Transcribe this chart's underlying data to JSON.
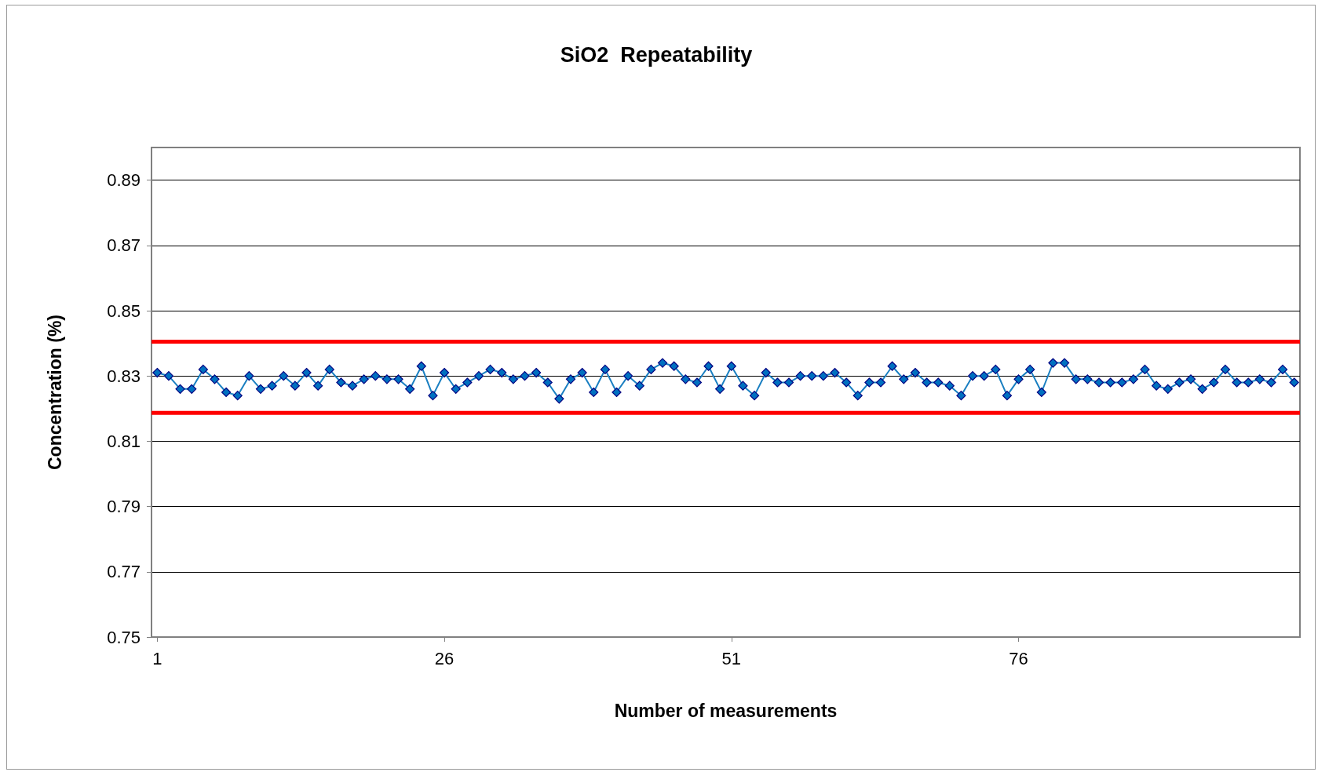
{
  "chart_data": {
    "type": "line",
    "title": "SiO2  Repeatability",
    "xlabel": "Number of measurements",
    "ylabel": "Concentration (%)",
    "x": [
      1,
      2,
      3,
      4,
      5,
      6,
      7,
      8,
      9,
      10,
      11,
      12,
      13,
      14,
      15,
      16,
      17,
      18,
      19,
      20,
      21,
      22,
      23,
      24,
      25,
      26,
      27,
      28,
      29,
      30,
      31,
      32,
      33,
      34,
      35,
      36,
      37,
      38,
      39,
      40,
      41,
      42,
      43,
      44,
      45,
      46,
      47,
      48,
      49,
      50,
      51,
      52,
      53,
      54,
      55,
      56,
      57,
      58,
      59,
      60,
      61,
      62,
      63,
      64,
      65,
      66,
      67,
      68,
      69,
      70,
      71,
      72,
      73,
      74,
      75,
      76,
      77,
      78,
      79,
      80,
      81,
      82,
      83,
      84,
      85,
      86,
      87,
      88,
      89,
      90,
      91,
      92,
      93,
      94,
      95,
      96,
      97,
      98,
      99,
      100
    ],
    "series": [
      {
        "color": "#0070c0",
        "values": [
          0.831,
          0.83,
          0.826,
          0.826,
          0.832,
          0.829,
          0.825,
          0.824,
          0.83,
          0.826,
          0.827,
          0.83,
          0.827,
          0.831,
          0.827,
          0.832,
          0.828,
          0.827,
          0.829,
          0.83,
          0.829,
          0.829,
          0.826,
          0.833,
          0.824,
          0.831,
          0.826,
          0.828,
          0.83,
          0.832,
          0.831,
          0.829,
          0.83,
          0.831,
          0.828,
          0.823,
          0.829,
          0.831,
          0.825,
          0.832,
          0.825,
          0.83,
          0.827,
          0.832,
          0.834,
          0.833,
          0.829,
          0.828,
          0.833,
          0.826,
          0.833,
          0.827,
          0.824,
          0.831,
          0.828,
          0.828,
          0.83,
          0.83,
          0.83,
          0.831,
          0.828,
          0.824,
          0.828,
          0.828,
          0.833,
          0.829,
          0.831,
          0.828,
          0.828,
          0.827,
          0.824,
          0.83,
          0.83,
          0.832,
          0.824,
          0.829,
          0.832,
          0.825,
          0.834,
          0.834,
          0.829,
          0.829,
          0.828,
          0.828,
          0.828,
          0.829,
          0.832,
          0.827,
          0.826,
          0.828,
          0.829,
          0.826,
          0.828,
          0.832,
          0.828,
          0.828,
          0.829,
          0.828,
          0.832,
          0.828
        ]
      }
    ],
    "xlim": [
      0.5,
      100.5
    ],
    "xticks": [
      1,
      26,
      51,
      76
    ],
    "ylim": [
      0.75,
      0.9
    ],
    "yticks": [
      0.75,
      0.77,
      0.79,
      0.81,
      0.83,
      0.85,
      0.87,
      0.89
    ],
    "ref_lines": [
      {
        "axis": "y",
        "value": 0.8405,
        "color": "#ff0000"
      },
      {
        "axis": "y",
        "value": 0.8187,
        "color": "#ff0000"
      }
    ],
    "grid": "y",
    "marker": "diamond",
    "line_style": "solid"
  }
}
